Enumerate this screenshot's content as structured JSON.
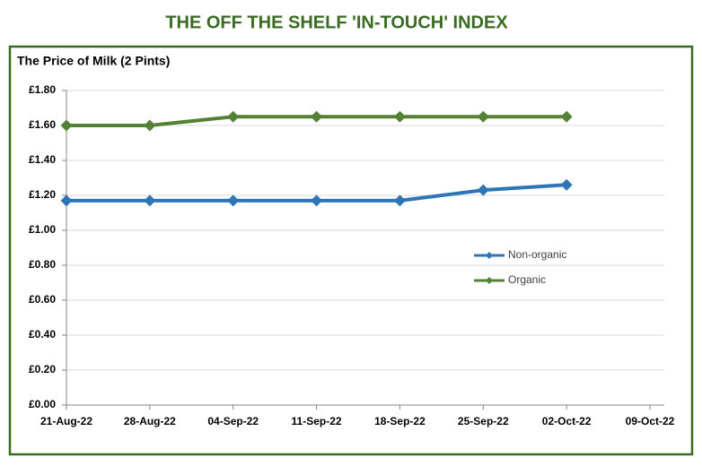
{
  "chart_data": {
    "type": "line",
    "page_title": "THE OFF THE SHELF 'IN-TOUCH' INDEX",
    "title": "The Price of Milk (2 Pints)",
    "categories": [
      "21-Aug-22",
      "28-Aug-22",
      "04-Sep-22",
      "11-Sep-22",
      "18-Sep-22",
      "25-Sep-22",
      "02-Oct-22",
      "09-Oct-22"
    ],
    "series": [
      {
        "name": "Non-organic",
        "color": "#2e75b6",
        "values": [
          1.17,
          1.17,
          1.17,
          1.17,
          1.17,
          1.23,
          1.26,
          null
        ]
      },
      {
        "name": "Organic",
        "color": "#548235",
        "values": [
          1.6,
          1.6,
          1.65,
          1.65,
          1.65,
          1.65,
          1.65,
          null
        ]
      }
    ],
    "ylim": [
      0,
      1.8
    ],
    "yticks": [
      {
        "value": 0,
        "label": "£0.00"
      },
      {
        "value": 0.2,
        "label": "£0.20"
      },
      {
        "value": 0.4,
        "label": "£0.40"
      },
      {
        "value": 0.6,
        "label": "£0.60"
      },
      {
        "value": 0.8,
        "label": "£0.80"
      },
      {
        "value": 1.0,
        "label": "£1.00"
      },
      {
        "value": 1.2,
        "label": "£1.20"
      },
      {
        "value": 1.4,
        "label": "£1.40"
      },
      {
        "value": 1.6,
        "label": "£1.60"
      },
      {
        "value": 1.8,
        "label": "£1.80"
      }
    ],
    "grid": true,
    "legend": "right"
  }
}
